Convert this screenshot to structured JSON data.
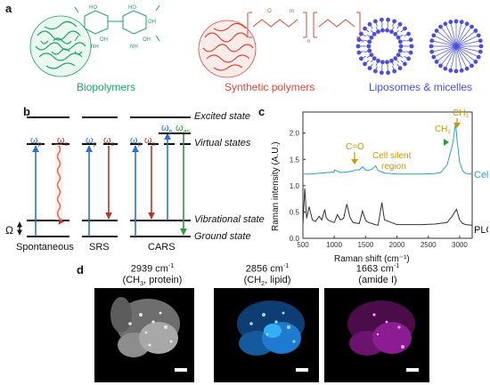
{
  "panel_a": {
    "label": "a",
    "captions": {
      "biopolymers": "Biopolymers",
      "synthetic": "Synthetic polymers",
      "liposomes": "Liposomes & micelles"
    },
    "chem_labels": [
      "HO",
      "OH",
      "HO",
      "OH",
      "OH",
      "NH",
      "NH",
      "O",
      "n",
      "n",
      "m"
    ],
    "colors": {
      "bio": "#1aa36b",
      "synthetic": "#d9473c",
      "liposome": "#4a4fd8"
    }
  },
  "panel_b": {
    "label": "b",
    "levels": {
      "excited": "Excited state",
      "virtual": "Virtual states",
      "vibrational": "Vibrational state",
      "ground": "Ground state"
    },
    "omega_labels": {
      "p": "ω",
      "p_sub": "p",
      "s": "ω",
      "s_sub": "s",
      "as": "ω",
      "as_sub": "as",
      "big": "Ω"
    },
    "processes": [
      "Spontaneous",
      "SRS",
      "CARS"
    ],
    "colors": {
      "pump": "#2f6fd6",
      "stokes": "#b3372b",
      "anti_stokes": "#2f9a3a"
    }
  },
  "panel_c": {
    "label": "c",
    "ylabel": "Raman intensity (A.U.)",
    "xlabel": "Raman shift (cm⁻¹)",
    "annotations": {
      "co": "C=O",
      "ch2": "CH",
      "ch3": "CH",
      "silent_1": "Cell silent",
      "silent_2": "region",
      "sub2": "2",
      "sub3": "3"
    },
    "series_labels": {
      "cell": "Cell",
      "plga": "PLGA"
    }
  },
  "panel_d": {
    "label": "d",
    "images": [
      {
        "wavenumber": "2939 cm",
        "sup": "-1",
        "sub_label": "(CH",
        "sub_num": "3",
        "sub_rest": ", protein)",
        "color": "#cfcfcf"
      },
      {
        "wavenumber": "2856 cm",
        "sup": "-1",
        "sub_label": "(CH",
        "sub_num": "2",
        "sub_rest": ", lipid)",
        "color": "#2f9bf0"
      },
      {
        "wavenumber": "1663 cm",
        "sup": "-1",
        "sub_label": "(amide I)",
        "sub_num": "",
        "sub_rest": "",
        "color": "#c51fc5"
      }
    ]
  },
  "chart_data": {
    "type": "line",
    "title": "",
    "xlabel": "Raman shift (cm⁻¹)",
    "ylabel": "Raman intensity (A.U.)",
    "xlim": [
      500,
      3200
    ],
    "ylim": [
      0,
      2.4
    ],
    "xticks": [
      500,
      1000,
      1500,
      2000,
      2500,
      3000
    ],
    "yticks": [
      0.0,
      0.5,
      1.0,
      1.5,
      2.0
    ],
    "series": [
      {
        "name": "Cell",
        "color": "#2aa0c8",
        "x": [
          500,
          600,
          700,
          800,
          900,
          1000,
          1003,
          1100,
          1200,
          1300,
          1340,
          1400,
          1450,
          1500,
          1550,
          1600,
          1660,
          1700,
          1800,
          2000,
          2200,
          2400,
          2600,
          2700,
          2800,
          2850,
          2880,
          2900,
          2935,
          2960,
          3000,
          3050,
          3100,
          3200
        ],
        "y": [
          1.22,
          1.22,
          1.23,
          1.24,
          1.25,
          1.26,
          1.3,
          1.25,
          1.26,
          1.28,
          1.3,
          1.3,
          1.36,
          1.3,
          1.29,
          1.31,
          1.38,
          1.29,
          1.24,
          1.22,
          1.22,
          1.22,
          1.23,
          1.25,
          1.4,
          1.62,
          1.75,
          1.88,
          2.2,
          1.85,
          1.45,
          1.28,
          1.23,
          1.22
        ]
      },
      {
        "name": "PLGA",
        "color": "#333333",
        "x": [
          500,
          530,
          560,
          600,
          650,
          700,
          760,
          800,
          850,
          870,
          900,
          950,
          1000,
          1050,
          1100,
          1150,
          1200,
          1250,
          1300,
          1400,
          1450,
          1500,
          1550,
          1600,
          1650,
          1700,
          1760,
          1800,
          2000,
          2200,
          2400,
          2600,
          2800,
          2880,
          2950,
          3000,
          3050,
          3100,
          3200
        ],
        "y": [
          0.25,
          0.95,
          0.38,
          0.6,
          0.35,
          0.32,
          0.42,
          0.35,
          0.55,
          0.4,
          0.35,
          0.32,
          0.3,
          0.45,
          0.35,
          0.38,
          0.65,
          0.4,
          0.3,
          0.28,
          0.52,
          0.34,
          0.3,
          0.28,
          0.26,
          0.25,
          0.68,
          0.35,
          0.26,
          0.26,
          0.26,
          0.27,
          0.3,
          0.42,
          0.55,
          0.35,
          0.28,
          0.26,
          0.25
        ]
      }
    ]
  }
}
